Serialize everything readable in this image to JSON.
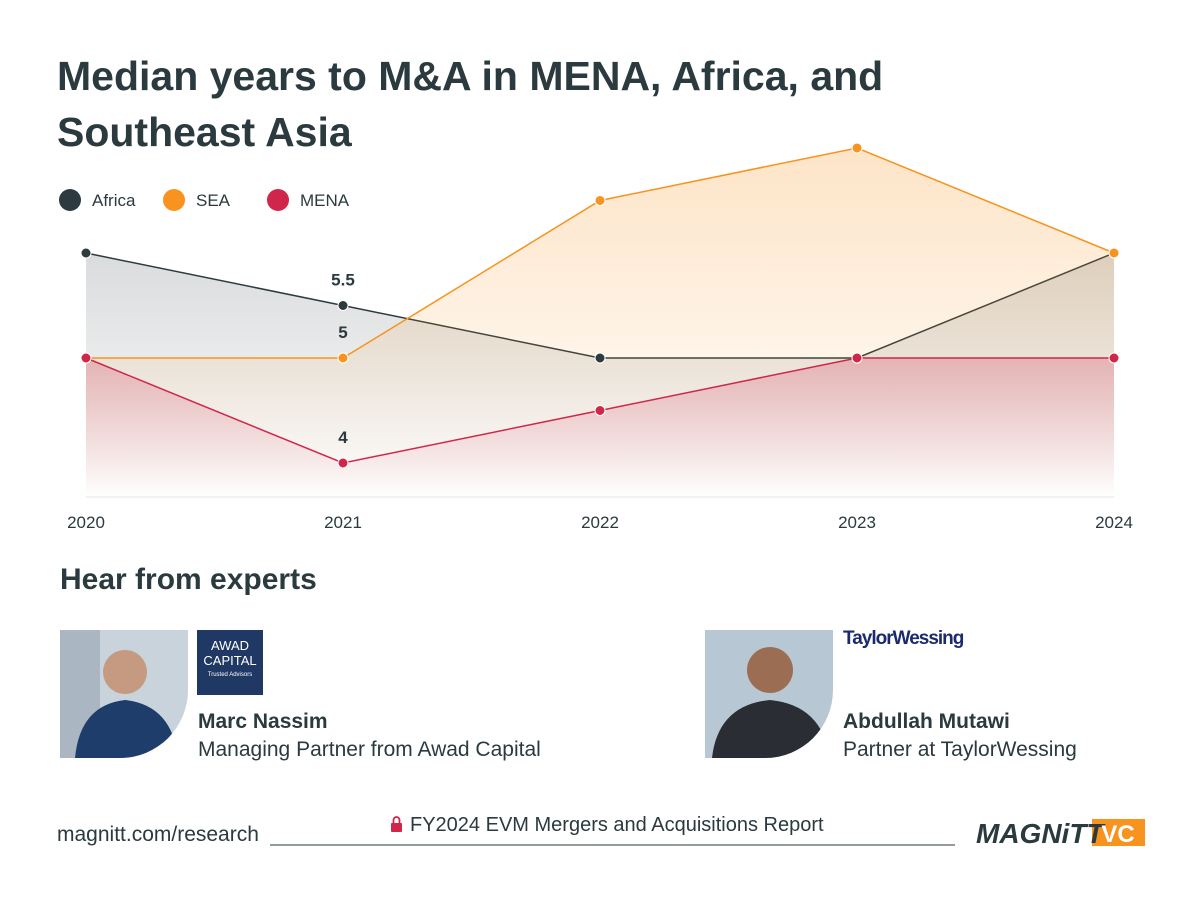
{
  "chart_data": {
    "type": "line",
    "title": "Median years to M&A in MENA, Africa, and Southeast Asia",
    "categories": [
      "2020",
      "2021",
      "2022",
      "2023",
      "2024"
    ],
    "series": [
      {
        "name": "Africa",
        "color": "#2d3a3f",
        "values": [
          6,
          5.5,
          5,
          5,
          6
        ]
      },
      {
        "name": "SEA",
        "color": "#f7931e",
        "values": [
          5,
          5,
          6.5,
          7,
          6
        ]
      },
      {
        "name": "MENA",
        "color": "#d0264a",
        "values": [
          5,
          4,
          4.5,
          5,
          5
        ]
      }
    ]
  },
  "experts_heading": "Hear from experts",
  "experts": [
    {
      "name": "Marc Nassim",
      "role": "Managing Partner from Awad Capital",
      "logo": [
        "AWAD",
        "CAPITAL",
        "Trusted Advisors"
      ]
    },
    {
      "name": "Abdullah Mutawi",
      "role": "Partner at TaylorWessing",
      "logo": [
        "TaylorWessing"
      ]
    }
  ],
  "footer": {
    "url": "magnitt.com/research",
    "report": "FY2024 EVM Mergers and Acquisitions Report",
    "brand": "MAGNiTT",
    "brand_tag": "VC"
  }
}
